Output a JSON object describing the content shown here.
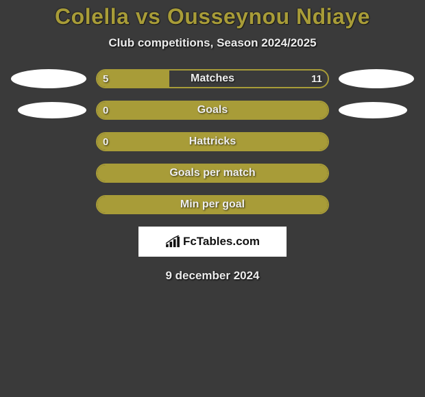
{
  "title": "Colella vs Ousseynou Ndiaye",
  "subtitle": "Club competitions, Season 2024/2025",
  "colors": {
    "background": "#3a3a3a",
    "accent": "#a89c38",
    "text": "#ececec",
    "white": "#ffffff",
    "black": "#111111"
  },
  "rows": [
    {
      "label": "Matches",
      "left_val": "5",
      "right_val": "11",
      "left_pct": 31.25,
      "right_pct": 0,
      "show_left_ellipse": true,
      "show_right_ellipse": true,
      "ellipse_small": false
    },
    {
      "label": "Goals",
      "left_val": "0",
      "right_val": "",
      "left_pct": 0,
      "right_pct": 0,
      "full": true,
      "show_left_ellipse": true,
      "show_right_ellipse": true,
      "ellipse_small": true
    },
    {
      "label": "Hattricks",
      "left_val": "0",
      "right_val": "",
      "left_pct": 0,
      "right_pct": 0,
      "full": true,
      "show_left_ellipse": false,
      "show_right_ellipse": false
    },
    {
      "label": "Goals per match",
      "left_val": "",
      "right_val": "",
      "left_pct": 0,
      "right_pct": 0,
      "full": true,
      "show_left_ellipse": false,
      "show_right_ellipse": false
    },
    {
      "label": "Min per goal",
      "left_val": "",
      "right_val": "",
      "left_pct": 0,
      "right_pct": 0,
      "full": true,
      "show_left_ellipse": false,
      "show_right_ellipse": false
    }
  ],
  "fctables": "FcTables.com",
  "date": "9 december 2024",
  "font": {
    "title_size": 32,
    "subtitle_size": 17,
    "bar_label_size": 16,
    "bar_val_size": 15
  }
}
